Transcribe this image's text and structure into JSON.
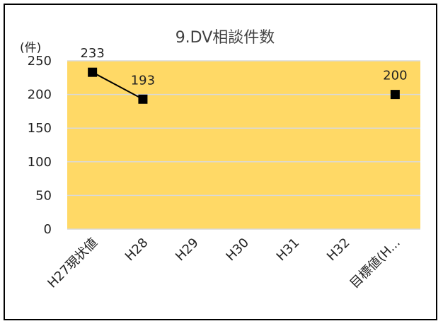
{
  "chart_data": {
    "type": "line",
    "title": "9.DV相談件数",
    "unit_label": "(件)",
    "categories": [
      "H27現状値",
      "H28",
      "H29",
      "H30",
      "H31",
      "H32",
      "目標値(H..."
    ],
    "series": [
      {
        "values": [
          233,
          193,
          null,
          null,
          null,
          null,
          200
        ]
      }
    ],
    "data_labels": [
      "233",
      "193",
      "",
      "",
      "",
      "",
      "200"
    ],
    "y_ticks": [
      0,
      50,
      100,
      150,
      200,
      250
    ],
    "ylim": [
      0,
      250
    ],
    "grid": true,
    "legend": "none",
    "colors": {
      "plot_background": "#FFD966",
      "gridline": "#D9D9D9",
      "line": "#000000",
      "marker": "#000000",
      "frame": "#000000"
    }
  }
}
